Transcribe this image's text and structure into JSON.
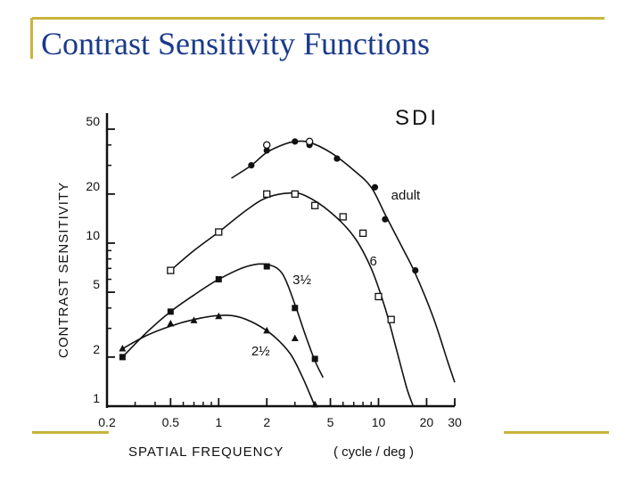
{
  "slide": {
    "title": "Contrast Sensitivity Functions",
    "accent_color": "#c8b43c",
    "title_color": "#1a3a8a"
  },
  "chart_data": {
    "type": "line",
    "title": "SDI",
    "xlabel": "SPATIAL FREQUENCY",
    "xunits": "( cycle / deg )",
    "ylabel": "CONTRAST SENSITIVITY",
    "xscale": "log",
    "yscale": "log",
    "xlim": [
      0.2,
      30
    ],
    "ylim": [
      1,
      50
    ],
    "x_ticks": [
      {
        "v": 0.2,
        "label": "0.2"
      },
      {
        "v": 0.5,
        "label": "0.5"
      },
      {
        "v": 1,
        "label": "1"
      },
      {
        "v": 2,
        "label": "2"
      },
      {
        "v": 5,
        "label": "5"
      },
      {
        "v": 10,
        "label": "10"
      },
      {
        "v": 20,
        "label": "20"
      },
      {
        "v": 30,
        "label": "30"
      }
    ],
    "y_ticks": [
      {
        "v": 1,
        "label": "1"
      },
      {
        "v": 2,
        "label": "2"
      },
      {
        "v": 5,
        "label": "5"
      },
      {
        "v": 10,
        "label": "10"
      },
      {
        "v": 20,
        "label": "20"
      },
      {
        "v": 50,
        "label": "50"
      }
    ],
    "series": [
      {
        "name": "adult",
        "marker": "filled-circle",
        "points": [
          [
            1.6,
            30
          ],
          [
            2,
            37
          ],
          [
            3,
            42
          ],
          [
            3.7,
            40
          ],
          [
            5.5,
            33
          ],
          [
            9.5,
            22
          ],
          [
            11,
            14
          ],
          [
            17,
            6.8
          ]
        ],
        "open_points": [
          [
            2,
            40
          ],
          [
            3.7,
            42
          ]
        ],
        "curve": [
          [
            1.2,
            25
          ],
          [
            1.6,
            30
          ],
          [
            2,
            36
          ],
          [
            2.5,
            40
          ],
          [
            3,
            42
          ],
          [
            3.7,
            41.5
          ],
          [
            5,
            36
          ],
          [
            7,
            28
          ],
          [
            9,
            22
          ],
          [
            11,
            15
          ],
          [
            14,
            9.5
          ],
          [
            17,
            6.5
          ],
          [
            22,
            3.5
          ],
          [
            27,
            1.9
          ],
          [
            30,
            1.4
          ]
        ]
      },
      {
        "name": "6",
        "marker": "open-square",
        "points": [
          [
            0.5,
            6.8
          ],
          [
            1,
            11.7
          ],
          [
            2,
            20
          ],
          [
            3,
            20
          ],
          [
            4,
            17
          ],
          [
            6,
            14.5
          ],
          [
            8,
            11.5
          ],
          [
            10,
            4.7
          ],
          [
            12,
            3.4
          ]
        ],
        "curve": [
          [
            0.5,
            6.8
          ],
          [
            0.7,
            9
          ],
          [
            1,
            11.7
          ],
          [
            1.5,
            16
          ],
          [
            2,
            19
          ],
          [
            2.8,
            20.3
          ],
          [
            3.5,
            19.5
          ],
          [
            5,
            15.5
          ],
          [
            7,
            11
          ],
          [
            9,
            7
          ],
          [
            11,
            4
          ],
          [
            13,
            2.2
          ],
          [
            15,
            1.3
          ],
          [
            16.5,
            1
          ]
        ]
      },
      {
        "name": "3½",
        "marker": "filled-square",
        "points": [
          [
            0.25,
            2
          ],
          [
            0.5,
            3.8
          ],
          [
            1,
            6
          ],
          [
            2,
            7.2
          ],
          [
            3,
            4
          ],
          [
            4,
            1.95
          ]
        ],
        "curve": [
          [
            0.25,
            2
          ],
          [
            0.35,
            2.8
          ],
          [
            0.5,
            3.8
          ],
          [
            0.7,
            4.8
          ],
          [
            1,
            6
          ],
          [
            1.5,
            7.2
          ],
          [
            2,
            7.4
          ],
          [
            2.5,
            6.5
          ],
          [
            3,
            4.2
          ],
          [
            3.5,
            2.7
          ],
          [
            4,
            1.9
          ],
          [
            4.5,
            1.5
          ]
        ]
      },
      {
        "name": "2½",
        "marker": "filled-triangle",
        "points": [
          [
            0.25,
            2.25
          ],
          [
            0.5,
            3.2
          ],
          [
            0.7,
            3.35
          ],
          [
            1,
            3.55
          ],
          [
            2,
            2.9
          ],
          [
            3,
            2.6
          ],
          [
            4,
            1.02
          ]
        ],
        "curve": [
          [
            0.25,
            2.25
          ],
          [
            0.35,
            2.7
          ],
          [
            0.5,
            3.1
          ],
          [
            0.7,
            3.4
          ],
          [
            1,
            3.6
          ],
          [
            1.3,
            3.55
          ],
          [
            1.7,
            3.2
          ],
          [
            2.2,
            2.7
          ],
          [
            2.8,
            2.1
          ],
          [
            3.3,
            1.55
          ],
          [
            3.7,
            1.2
          ],
          [
            4,
            1
          ]
        ]
      }
    ],
    "curve_labels": [
      {
        "series": 0,
        "text": "adult",
        "x": 12,
        "y": 18.5
      },
      {
        "series": 1,
        "text": "6",
        "x": 8.8,
        "y": 7.3
      },
      {
        "series": 2,
        "text": "3½",
        "x": 2.9,
        "y": 5.6
      },
      {
        "series": 3,
        "text": "2½",
        "x": 1.6,
        "y": 2.05
      }
    ]
  }
}
